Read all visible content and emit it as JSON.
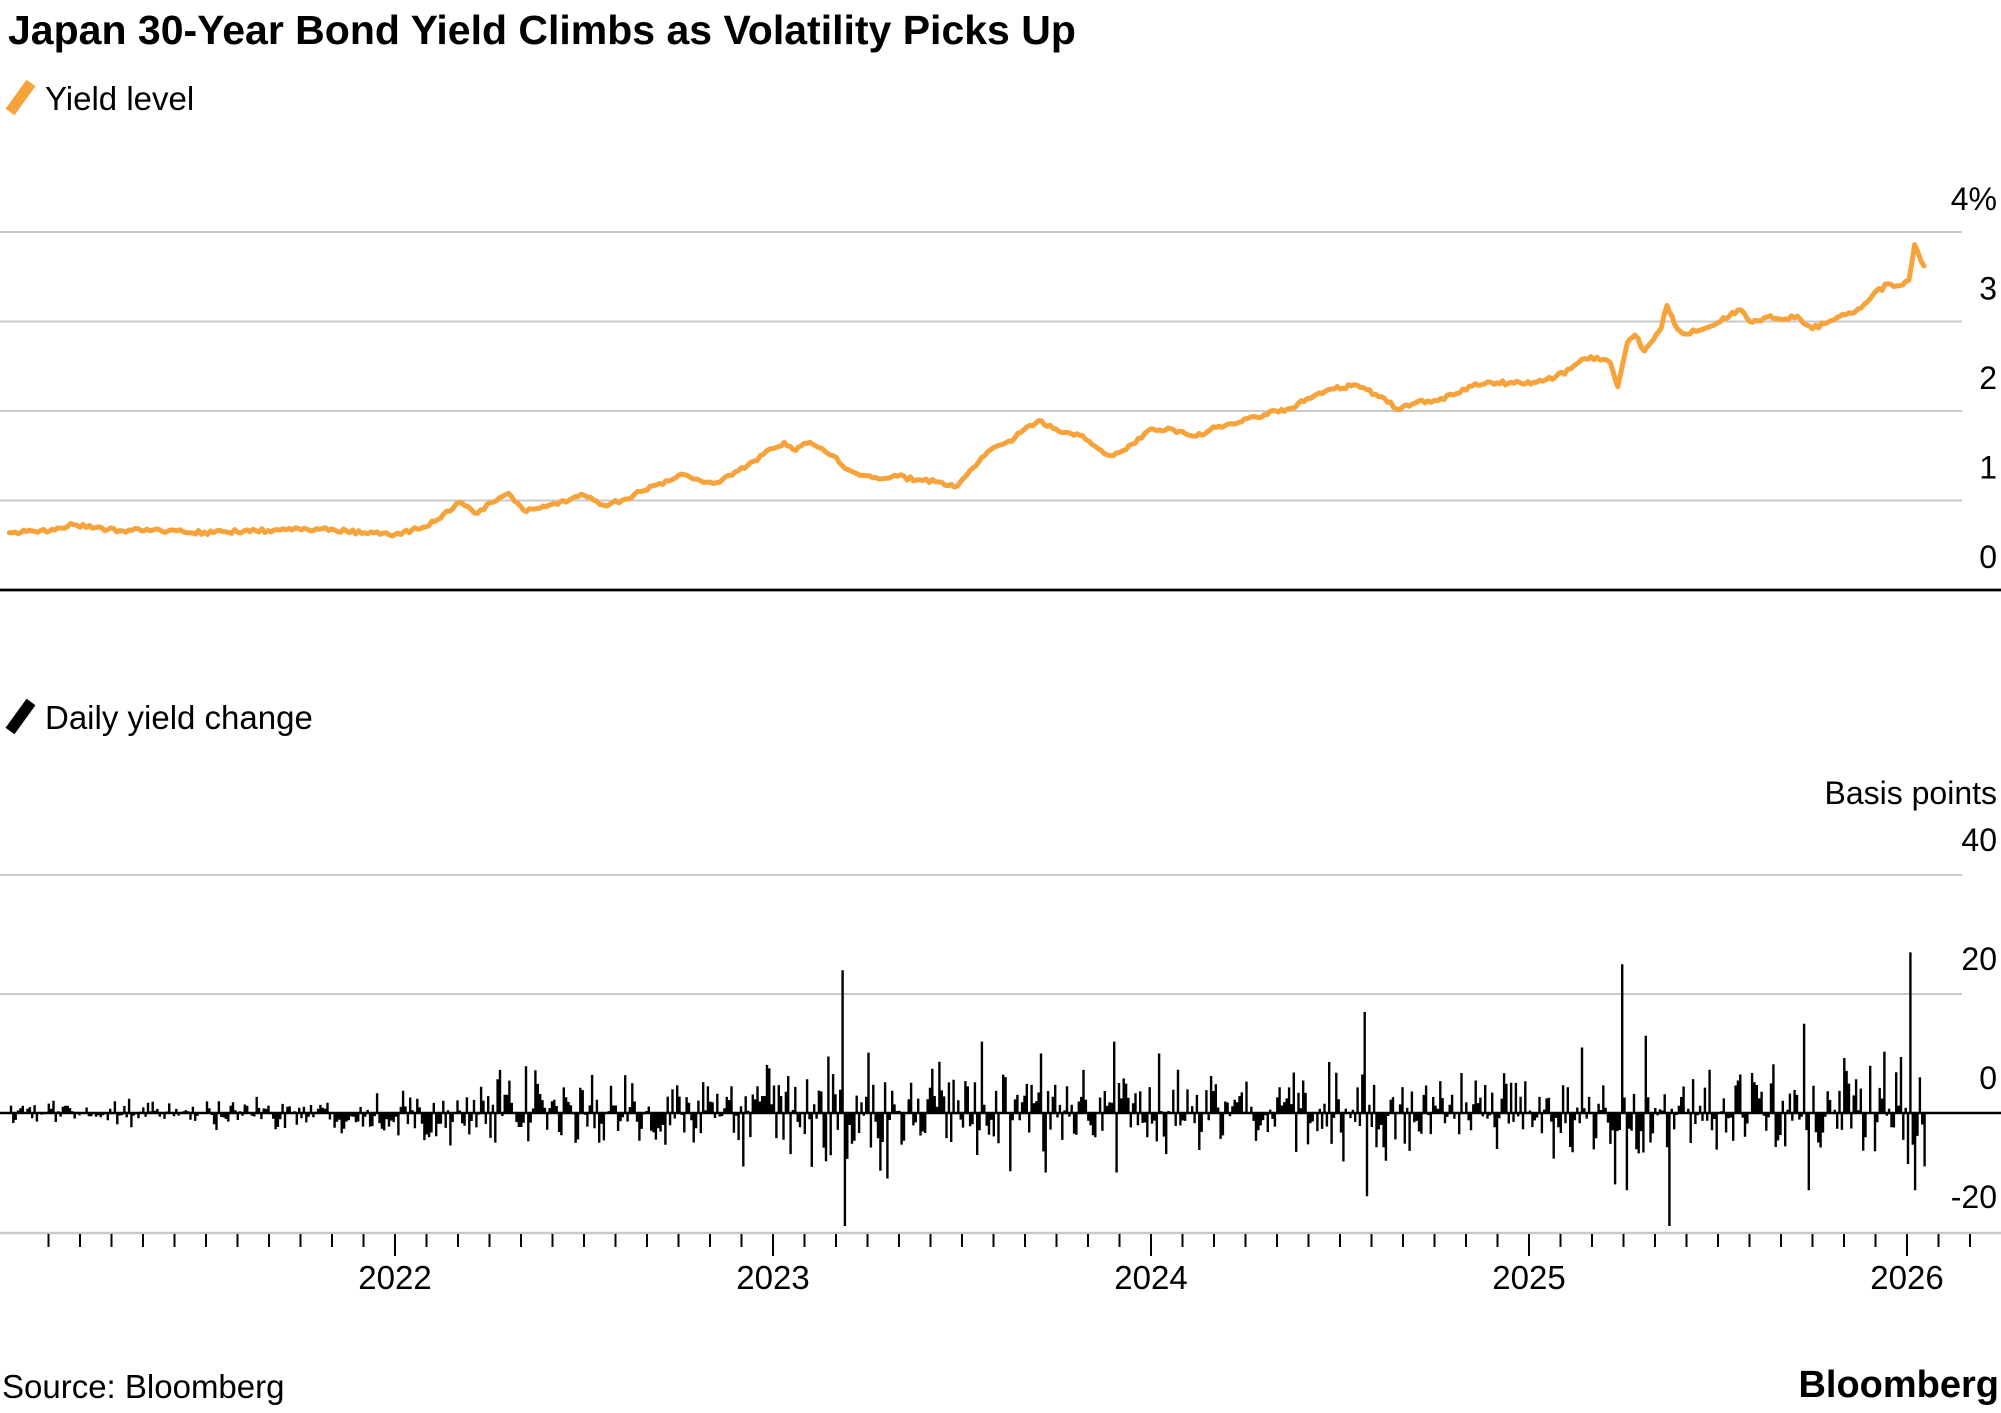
{
  "title": "Japan 30-Year Bond Yield Climbs as Volatility Picks Up",
  "legend_top": "Yield level",
  "legend_bottom": "Daily yield change",
  "footer": {
    "source": "Source: Bloomberg",
    "brand": "Bloomberg"
  },
  "colors": {
    "line_orange": "#F7A33C",
    "bar_black": "#000000",
    "grid_gray": "#C9C9C9",
    "axis_black": "#000000"
  },
  "top_chart": {
    "y_tick_labels": [
      "4%",
      "3",
      "2",
      "1",
      "0"
    ],
    "y_tick_values": [
      4,
      3,
      2,
      1,
      0
    ]
  },
  "bottom_chart": {
    "axis_title": "Basis points",
    "y_tick_labels": [
      "40",
      "20",
      "0",
      "-20"
    ],
    "y_tick_values": [
      40,
      20,
      0,
      -20
    ]
  },
  "x_axis": {
    "year_labels": [
      "2022",
      "2023",
      "2024",
      "2025",
      "2026"
    ],
    "year_values": [
      2022,
      2023,
      2024,
      2025,
      2026
    ],
    "start": 2020.98,
    "end": 2026.05,
    "minor_tick_interval_months": 1
  },
  "chart_data": [
    {
      "type": "line",
      "name": "Yield level",
      "unit": "percent",
      "ylim": [
        0,
        4.2
      ],
      "points": [
        [
          2020.98,
          0.64
        ],
        [
          2021.04,
          0.66
        ],
        [
          2021.1,
          0.67
        ],
        [
          2021.15,
          0.73
        ],
        [
          2021.2,
          0.69
        ],
        [
          2021.28,
          0.66
        ],
        [
          2021.36,
          0.67
        ],
        [
          2021.44,
          0.65
        ],
        [
          2021.52,
          0.64
        ],
        [
          2021.6,
          0.66
        ],
        [
          2021.68,
          0.67
        ],
        [
          2021.76,
          0.69
        ],
        [
          2021.84,
          0.67
        ],
        [
          2021.92,
          0.64
        ],
        [
          2022.0,
          0.62
        ],
        [
          2022.06,
          0.68
        ],
        [
          2022.12,
          0.8
        ],
        [
          2022.17,
          0.98
        ],
        [
          2022.21,
          0.86
        ],
        [
          2022.26,
          0.98
        ],
        [
          2022.3,
          1.08
        ],
        [
          2022.34,
          0.89
        ],
        [
          2022.4,
          0.93
        ],
        [
          2022.46,
          1.0
        ],
        [
          2022.5,
          1.06
        ],
        [
          2022.55,
          0.95
        ],
        [
          2022.6,
          1.0
        ],
        [
          2022.65,
          1.1
        ],
        [
          2022.7,
          1.19
        ],
        [
          2022.75,
          1.28
        ],
        [
          2022.8,
          1.24
        ],
        [
          2022.85,
          1.2
        ],
        [
          2022.9,
          1.32
        ],
        [
          2022.95,
          1.44
        ],
        [
          2023.0,
          1.58
        ],
        [
          2023.03,
          1.65
        ],
        [
          2023.06,
          1.56
        ],
        [
          2023.09,
          1.64
        ],
        [
          2023.13,
          1.58
        ],
        [
          2023.16,
          1.5
        ],
        [
          2023.19,
          1.36
        ],
        [
          2023.23,
          1.28
        ],
        [
          2023.28,
          1.24
        ],
        [
          2023.33,
          1.27
        ],
        [
          2023.38,
          1.23
        ],
        [
          2023.43,
          1.21
        ],
        [
          2023.48,
          1.15
        ],
        [
          2023.52,
          1.33
        ],
        [
          2023.56,
          1.5
        ],
        [
          2023.6,
          1.62
        ],
        [
          2023.64,
          1.7
        ],
        [
          2023.68,
          1.84
        ],
        [
          2023.71,
          1.89
        ],
        [
          2023.74,
          1.81
        ],
        [
          2023.78,
          1.76
        ],
        [
          2023.82,
          1.72
        ],
        [
          2023.86,
          1.58
        ],
        [
          2023.9,
          1.5
        ],
        [
          2023.95,
          1.63
        ],
        [
          2024.0,
          1.8
        ],
        [
          2024.06,
          1.79
        ],
        [
          2024.12,
          1.72
        ],
        [
          2024.18,
          1.83
        ],
        [
          2024.24,
          1.88
        ],
        [
          2024.3,
          1.96
        ],
        [
          2024.36,
          2.02
        ],
        [
          2024.42,
          2.14
        ],
        [
          2024.47,
          2.24
        ],
        [
          2024.53,
          2.28
        ],
        [
          2024.57,
          2.24
        ],
        [
          2024.61,
          2.16
        ],
        [
          2024.65,
          2.02
        ],
        [
          2024.7,
          2.09
        ],
        [
          2024.75,
          2.12
        ],
        [
          2024.8,
          2.18
        ],
        [
          2024.85,
          2.28
        ],
        [
          2024.9,
          2.32
        ],
        [
          2024.96,
          2.31
        ],
        [
          2025.02,
          2.32
        ],
        [
          2025.07,
          2.38
        ],
        [
          2025.11,
          2.47
        ],
        [
          2025.14,
          2.58
        ],
        [
          2025.18,
          2.6
        ],
        [
          2025.215,
          2.54
        ],
        [
          2025.235,
          2.27
        ],
        [
          2025.26,
          2.76
        ],
        [
          2025.28,
          2.85
        ],
        [
          2025.305,
          2.67
        ],
        [
          2025.33,
          2.8
        ],
        [
          2025.35,
          2.93
        ],
        [
          2025.365,
          3.18
        ],
        [
          2025.385,
          2.97
        ],
        [
          2025.41,
          2.86
        ],
        [
          2025.45,
          2.9
        ],
        [
          2025.49,
          2.96
        ],
        [
          2025.53,
          3.06
        ],
        [
          2025.56,
          3.13
        ],
        [
          2025.59,
          2.99
        ],
        [
          2025.63,
          3.05
        ],
        [
          2025.67,
          3.02
        ],
        [
          2025.71,
          3.06
        ],
        [
          2025.75,
          2.92
        ],
        [
          2025.79,
          2.99
        ],
        [
          2025.83,
          3.08
        ],
        [
          2025.87,
          3.14
        ],
        [
          2025.91,
          3.3
        ],
        [
          2025.95,
          3.42
        ],
        [
          2025.98,
          3.4
        ],
        [
          2026.005,
          3.46
        ],
        [
          2026.02,
          3.86
        ],
        [
          2026.045,
          3.62
        ]
      ]
    },
    {
      "type": "bar",
      "name": "Daily yield change",
      "unit": "basis points",
      "ylim": [
        -25,
        42
      ],
      "bars_per_year": 160,
      "volatility_envelope": [
        [
          2020.98,
          1.1
        ],
        [
          2021.5,
          1.2
        ],
        [
          2021.85,
          1.5
        ],
        [
          2022.1,
          2.4
        ],
        [
          2022.35,
          3.2
        ],
        [
          2022.6,
          2.9
        ],
        [
          2022.9,
          3.5
        ],
        [
          2023.15,
          4.0
        ],
        [
          2023.3,
          4.2
        ],
        [
          2023.5,
          3.3
        ],
        [
          2023.75,
          3.9
        ],
        [
          2024.0,
          3.5
        ],
        [
          2024.3,
          3.3
        ],
        [
          2024.6,
          3.7
        ],
        [
          2024.9,
          3.3
        ],
        [
          2025.1,
          3.7
        ],
        [
          2025.3,
          4.7
        ],
        [
          2025.5,
          3.9
        ],
        [
          2025.75,
          3.7
        ],
        [
          2026.0,
          4.8
        ],
        [
          2026.05,
          5.0
        ]
      ],
      "spikes": [
        [
          2022.92,
          -9
        ],
        [
          2023.185,
          24
        ],
        [
          2023.193,
          -19
        ],
        [
          2023.3,
          -11
        ],
        [
          2023.55,
          12
        ],
        [
          2023.71,
          10
        ],
        [
          2023.72,
          -10
        ],
        [
          2023.9,
          12
        ],
        [
          2023.91,
          -10
        ],
        [
          2024.02,
          10
        ],
        [
          2024.565,
          17
        ],
        [
          2024.573,
          -14
        ],
        [
          2025.14,
          11
        ],
        [
          2025.23,
          -12
        ],
        [
          2025.245,
          25
        ],
        [
          2025.26,
          -13
        ],
        [
          2025.31,
          13
        ],
        [
          2025.37,
          -19
        ],
        [
          2025.73,
          15
        ],
        [
          2025.74,
          -13
        ],
        [
          2026.01,
          27
        ],
        [
          2026.022,
          -13
        ]
      ]
    }
  ]
}
